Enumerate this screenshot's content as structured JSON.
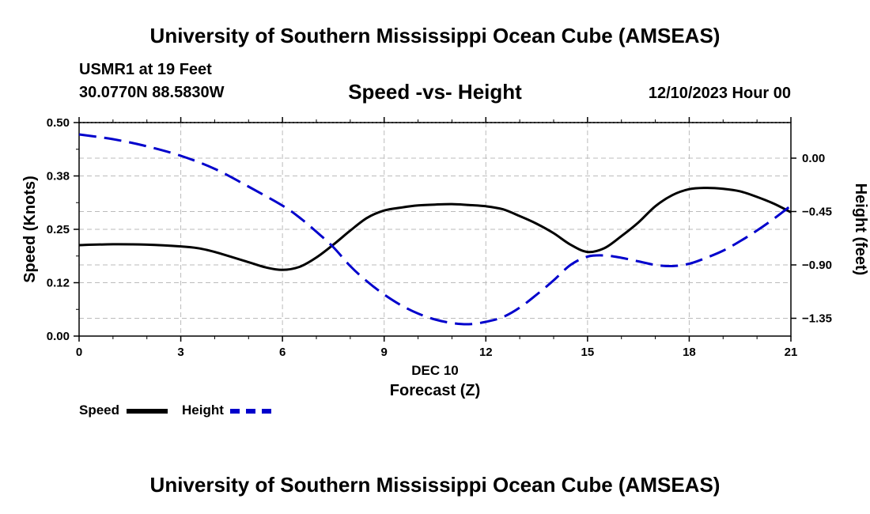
{
  "header": {
    "title": "University of Southern Mississippi Ocean Cube (AMSEAS)",
    "station": "USMR1 at 19 Feet",
    "coords": "30.0770N  88.5830W",
    "subtitle": "Speed -vs- Height",
    "datetime": "12/10/2023 Hour 00"
  },
  "footer": {
    "title": "University of Southern Mississippi Ocean Cube (AMSEAS)"
  },
  "legend": {
    "speed_label": "Speed",
    "height_label": "Height"
  },
  "colors": {
    "speed": "#000000",
    "height": "#0000cc",
    "grid": "#bbbbbb"
  },
  "chart_data": {
    "type": "line",
    "title": "Speed -vs- Height",
    "xlabel_line1": "DEC 10",
    "xlabel": "Forecast (Z)",
    "ylabel": "Speed (Knots)",
    "y2label": "Height (feet)",
    "xlim": [
      0,
      21
    ],
    "ylim": [
      0,
      0.5
    ],
    "y2lim": [
      -1.5,
      0.3
    ],
    "x_ticks": [
      0,
      3,
      6,
      9,
      12,
      15,
      18,
      21
    ],
    "x_tick_labels": [
      "0",
      "3",
      "6",
      "9",
      "12",
      "15",
      "18",
      "21"
    ],
    "y_ticks": [
      0,
      0.125,
      0.25,
      0.375,
      0.5
    ],
    "y_tick_labels": [
      "0.00",
      "0.12",
      "0.25",
      "0.38",
      "0.50"
    ],
    "y2_ticks": [
      0,
      -0.45,
      -0.9,
      -1.35
    ],
    "y2_tick_labels": [
      "0.00",
      "−0.45",
      "−0.90",
      "−1.35"
    ],
    "grid": true,
    "series": [
      {
        "name": "Speed",
        "axis": "left",
        "style": "solid",
        "x": [
          0,
          1,
          2,
          3,
          3.5,
          4,
          5,
          5.5,
          6,
          6.5,
          7,
          7.5,
          8,
          8.5,
          9,
          9.5,
          10,
          10.5,
          11,
          11.5,
          12,
          12.5,
          13,
          13.5,
          14,
          14.5,
          15,
          15.5,
          16,
          16.5,
          17,
          17.5,
          18,
          18.5,
          19,
          19.5,
          20,
          20.5,
          21
        ],
        "values": [
          0.213,
          0.215,
          0.214,
          0.21,
          0.206,
          0.197,
          0.173,
          0.161,
          0.155,
          0.162,
          0.184,
          0.214,
          0.247,
          0.277,
          0.294,
          0.301,
          0.306,
          0.308,
          0.309,
          0.307,
          0.304,
          0.297,
          0.281,
          0.263,
          0.241,
          0.214,
          0.197,
          0.206,
          0.234,
          0.266,
          0.304,
          0.33,
          0.344,
          0.347,
          0.345,
          0.339,
          0.326,
          0.31,
          0.29
        ]
      },
      {
        "name": "Height",
        "axis": "right",
        "style": "dashed",
        "x": [
          0,
          1,
          2,
          3,
          4,
          5,
          6,
          6.5,
          7,
          7.5,
          8,
          8.5,
          9,
          9.5,
          10,
          10.5,
          11,
          11.5,
          12,
          12.5,
          13,
          13.5,
          14,
          14.5,
          15,
          15.5,
          16,
          16.5,
          17,
          17.5,
          18,
          18.5,
          19,
          19.5,
          20,
          20.5,
          21
        ],
        "values": [
          0.2,
          0.16,
          0.1,
          0.02,
          -0.09,
          -0.24,
          -0.4,
          -0.5,
          -0.62,
          -0.75,
          -0.91,
          -1.04,
          -1.15,
          -1.24,
          -1.31,
          -1.36,
          -1.39,
          -1.4,
          -1.38,
          -1.34,
          -1.26,
          -1.15,
          -1.03,
          -0.9,
          -0.83,
          -0.82,
          -0.84,
          -0.87,
          -0.9,
          -0.91,
          -0.89,
          -0.84,
          -0.78,
          -0.7,
          -0.61,
          -0.51,
          -0.4
        ]
      }
    ]
  }
}
